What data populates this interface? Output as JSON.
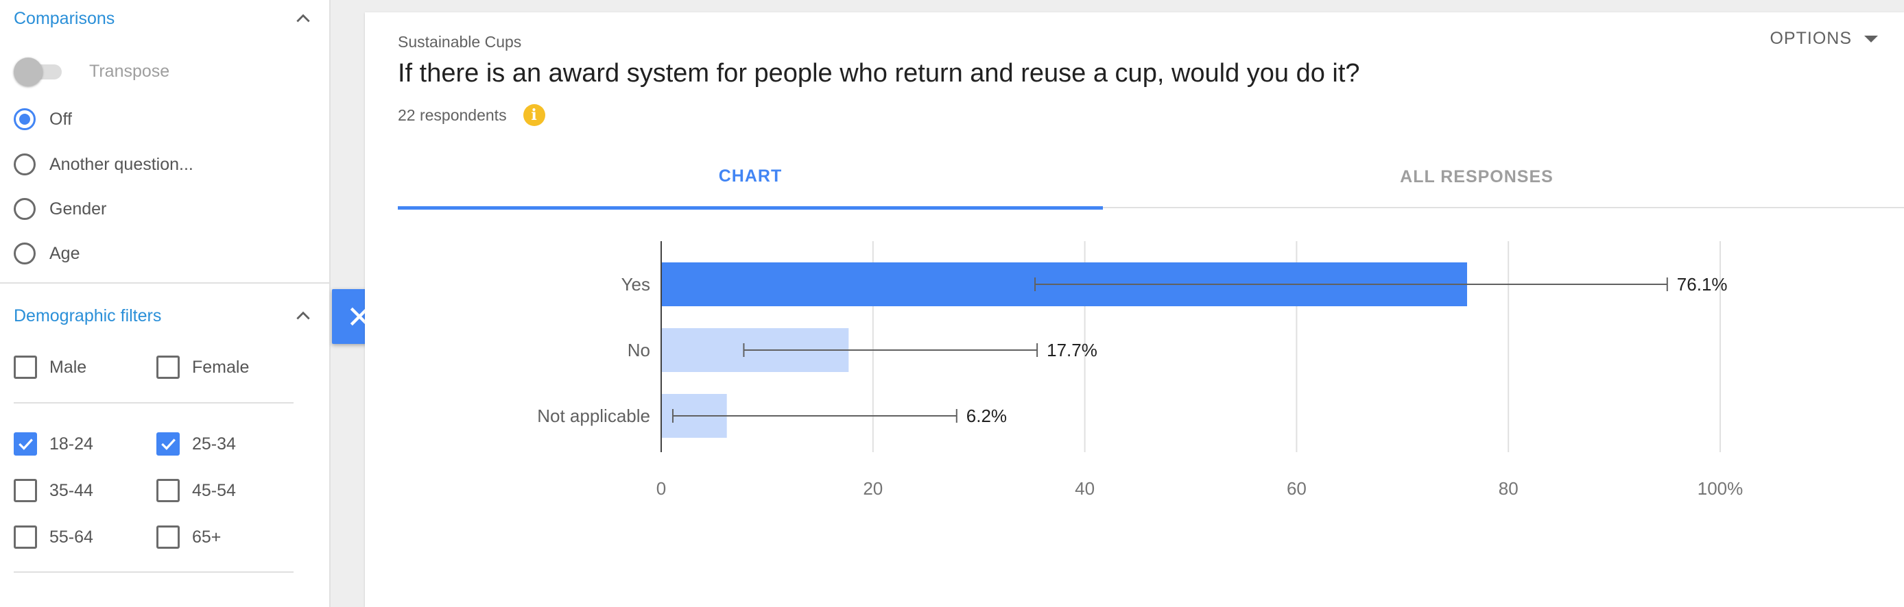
{
  "sidebar": {
    "comparisons": {
      "title": "Comparisons",
      "transpose_label": "Transpose",
      "transpose_on": false,
      "options": [
        {
          "label": "Off",
          "checked": true
        },
        {
          "label": "Another question...",
          "checked": false
        },
        {
          "label": "Gender",
          "checked": false
        },
        {
          "label": "Age",
          "checked": false
        }
      ]
    },
    "demographic_filters": {
      "title": "Demographic filters",
      "gender": [
        {
          "label": "Male",
          "checked": false
        },
        {
          "label": "Female",
          "checked": false
        }
      ],
      "age": [
        {
          "label": "18-24",
          "checked": true
        },
        {
          "label": "25-34",
          "checked": true
        },
        {
          "label": "35-44",
          "checked": false
        },
        {
          "label": "45-54",
          "checked": false
        },
        {
          "label": "55-64",
          "checked": false
        },
        {
          "label": "65+",
          "checked": false
        }
      ]
    }
  },
  "card": {
    "survey_name": "Sustainable Cups",
    "question": "If there is an award system for people who return and reuse a cup, would you do it?",
    "respondents": "22 respondents",
    "options_label": "OPTIONS",
    "tabs": [
      {
        "label": "CHART",
        "active": true
      },
      {
        "label": "ALL RESPONSES",
        "active": false
      }
    ]
  },
  "colors": {
    "accent": "#4285f4",
    "bar_primary": "#4285f4",
    "bar_secondary": "#c6d9fb",
    "info": "#f6bf26",
    "link": "#2a8fd8"
  },
  "chart_data": {
    "type": "bar",
    "orientation": "horizontal",
    "categories": [
      "Yes",
      "No",
      "Not applicable"
    ],
    "values": [
      76.1,
      17.7,
      6.2
    ],
    "value_labels": [
      "76.1%",
      "17.7%",
      "6.2%"
    ],
    "error_bars": [
      [
        35.3,
        95.0
      ],
      [
        7.8,
        35.5
      ],
      [
        1.1,
        27.9
      ]
    ],
    "xlim": [
      0,
      100
    ],
    "xticks": [
      0,
      20,
      40,
      60,
      80,
      100
    ],
    "xtick_labels": [
      "0",
      "20",
      "40",
      "60",
      "80",
      "100%"
    ],
    "grid": true,
    "title": "",
    "xlabel": "",
    "ylabel": ""
  }
}
